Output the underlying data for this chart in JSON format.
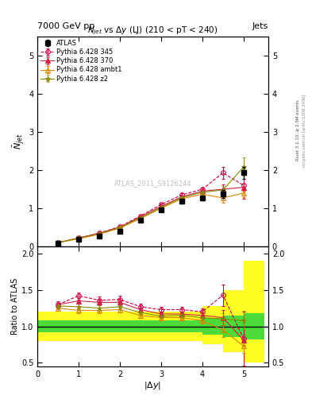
{
  "title_top": "7000 GeV pp",
  "title_right": "Jets",
  "watermark": "ATLAS_2011_S9126244",
  "rivet_label": "Rivet 3.1.10, ≥ 2.9M events",
  "arxiv_label": "mcplots.cern.ch [arXiv:1306.3436]",
  "xlabel": "|$\\Delta y$|",
  "ylabel_main": "$\\bar{N}_{jet}$",
  "ylabel_ratio": "Ratio to ATLAS",
  "atlas_x": [
    0.5,
    1.0,
    1.5,
    2.0,
    2.5,
    3.0,
    3.5,
    4.0,
    4.5,
    5.0
  ],
  "atlas_y": [
    0.08,
    0.18,
    0.28,
    0.4,
    0.68,
    0.95,
    1.18,
    1.27,
    1.38,
    1.93
  ],
  "atlas_yerr": [
    0.01,
    0.01,
    0.015,
    0.02,
    0.03,
    0.04,
    0.05,
    0.06,
    0.1,
    0.15
  ],
  "p345_x": [
    0.5,
    1.0,
    1.5,
    2.0,
    2.5,
    3.0,
    3.5,
    4.0,
    4.5,
    5.0
  ],
  "p345_y": [
    0.1,
    0.22,
    0.35,
    0.52,
    0.8,
    1.1,
    1.35,
    1.5,
    1.93,
    1.6
  ],
  "p345_yerr": [
    0.005,
    0.007,
    0.01,
    0.015,
    0.02,
    0.03,
    0.04,
    0.05,
    0.15,
    0.35
  ],
  "p370_x": [
    0.5,
    1.0,
    1.5,
    2.0,
    2.5,
    3.0,
    3.5,
    4.0,
    4.5,
    5.0
  ],
  "p370_y": [
    0.1,
    0.22,
    0.35,
    0.5,
    0.78,
    1.05,
    1.3,
    1.45,
    1.5,
    1.55
  ],
  "p370_yerr": [
    0.005,
    0.007,
    0.01,
    0.015,
    0.02,
    0.025,
    0.035,
    0.045,
    0.12,
    0.1
  ],
  "pambt1_x": [
    0.5,
    1.0,
    1.5,
    2.0,
    2.5,
    3.0,
    3.5,
    4.0,
    4.5,
    5.0
  ],
  "pambt1_y": [
    0.1,
    0.2,
    0.32,
    0.48,
    0.73,
    1.0,
    1.25,
    1.37,
    1.27,
    1.4
  ],
  "pambt1_yerr": [
    0.005,
    0.007,
    0.01,
    0.015,
    0.02,
    0.025,
    0.035,
    0.045,
    0.12,
    0.1
  ],
  "pz2_x": [
    0.5,
    1.0,
    1.5,
    2.0,
    2.5,
    3.0,
    3.5,
    4.0,
    4.5,
    5.0
  ],
  "pz2_y": [
    0.1,
    0.22,
    0.33,
    0.5,
    0.75,
    1.02,
    1.28,
    1.42,
    1.48,
    2.08
  ],
  "pz2_yerr": [
    0.005,
    0.007,
    0.01,
    0.015,
    0.02,
    0.025,
    0.035,
    0.045,
    0.1,
    0.25
  ],
  "ratio_p345_y": [
    1.3,
    1.42,
    1.36,
    1.37,
    1.27,
    1.23,
    1.23,
    1.2,
    1.43,
    0.83
  ],
  "ratio_p345_yerr": [
    0.05,
    0.05,
    0.05,
    0.05,
    0.04,
    0.04,
    0.04,
    0.05,
    0.15,
    0.37
  ],
  "ratio_p370_y": [
    1.3,
    1.35,
    1.33,
    1.33,
    1.23,
    1.17,
    1.17,
    1.15,
    1.12,
    0.81
  ],
  "ratio_p370_yerr": [
    0.04,
    0.04,
    0.04,
    0.04,
    0.03,
    0.03,
    0.03,
    0.04,
    0.1,
    0.08
  ],
  "ratio_pambt1_y": [
    1.25,
    1.22,
    1.22,
    1.23,
    1.15,
    1.12,
    1.12,
    1.08,
    0.95,
    0.73
  ],
  "ratio_pambt1_yerr": [
    0.04,
    0.04,
    0.04,
    0.04,
    0.03,
    0.03,
    0.03,
    0.04,
    0.1,
    0.1
  ],
  "ratio_pz2_y": [
    1.28,
    1.27,
    1.25,
    1.27,
    1.19,
    1.14,
    1.15,
    1.12,
    1.1,
    1.08
  ],
  "ratio_pz2_yerr": [
    0.04,
    0.04,
    0.04,
    0.04,
    0.03,
    0.03,
    0.03,
    0.04,
    0.08,
    0.13
  ],
  "color_345": "#cc0044",
  "color_370": "#cc2244",
  "color_ambt1": "#dd8800",
  "color_z2": "#888800",
  "ylim_main": [
    0,
    5.5
  ],
  "ylim_ratio": [
    0.45,
    2.1
  ],
  "xlim": [
    0,
    5.6
  ]
}
